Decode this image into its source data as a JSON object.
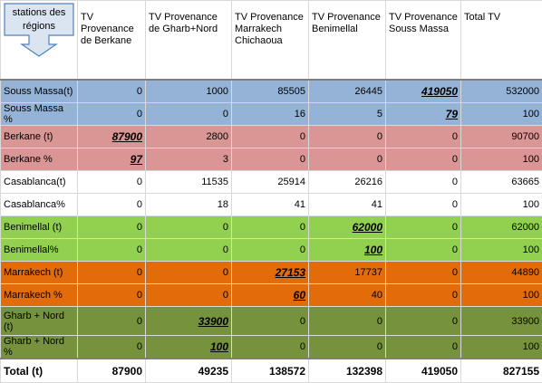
{
  "header": {
    "callout": "stations des régions",
    "columns": [
      "TV Provenance de Berkane",
      "TV Provenance de Gharb+Nord",
      "TV Provenance Marrakech Chichaoua",
      "TV Provenance Benimellal",
      "TV Provenance Souss Massa",
      "Total TV"
    ]
  },
  "table": {
    "rows": [
      [
        "Souss Massa(t)",
        0,
        1000,
        85505,
        26445,
        419050,
        532000
      ],
      [
        "Souss Massa %",
        0,
        0,
        16,
        5,
        79,
        100
      ],
      [
        "Berkane (t)",
        87900,
        2800,
        0,
        0,
        0,
        90700
      ],
      [
        "Berkane %",
        97,
        3,
        0,
        0,
        0,
        100
      ],
      [
        "Casablanca(t)",
        0,
        11535,
        25914,
        26216,
        0,
        63665
      ],
      [
        "Casablanca%",
        0,
        18,
        41,
        41,
        0,
        100
      ],
      [
        "Benimellal (t)",
        0,
        0,
        0,
        62000,
        0,
        62000
      ],
      [
        "Benimellal%",
        0,
        0,
        0,
        100,
        0,
        100
      ],
      [
        "Marrakech (t)",
        0,
        0,
        27153,
        17737,
        0,
        44890
      ],
      [
        "Marrakech %",
        0,
        0,
        60,
        40,
        0,
        100
      ],
      [
        "Gharb + Nord (t)",
        0,
        33900,
        0,
        0,
        0,
        33900
      ],
      [
        "Gharb + Nord %",
        0,
        100,
        0,
        0,
        0,
        100
      ]
    ],
    "total": [
      "Total (t)",
      87900,
      49235,
      138572,
      132398,
      419050,
      827155
    ]
  }
}
